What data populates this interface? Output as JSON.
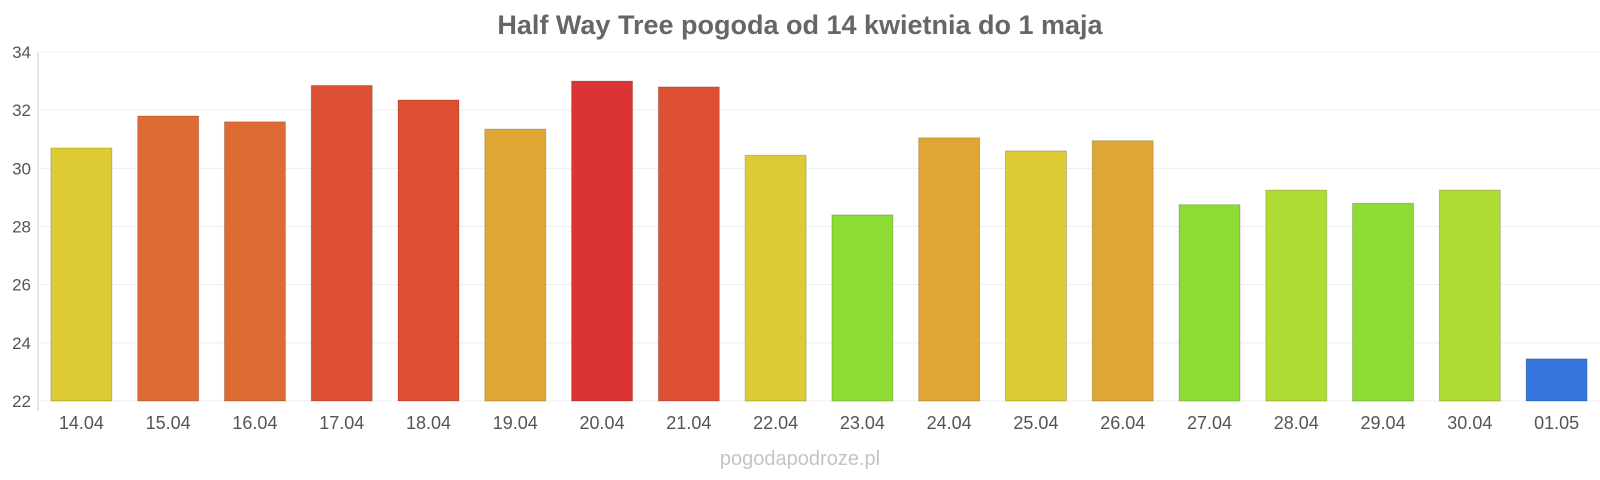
{
  "chart_data": {
    "type": "bar",
    "title": "Half Way Tree pogoda od 14 kwietnia do 1 maja",
    "categories": [
      "14.04",
      "15.04",
      "16.04",
      "17.04",
      "18.04",
      "19.04",
      "20.04",
      "21.04",
      "22.04",
      "23.04",
      "24.04",
      "25.04",
      "26.04",
      "27.04",
      "28.04",
      "29.04",
      "30.04",
      "01.05"
    ],
    "values": [
      30.7,
      31.8,
      31.6,
      32.85,
      32.35,
      31.35,
      33.0,
      32.8,
      30.45,
      28.4,
      31.05,
      30.6,
      30.95,
      28.75,
      29.25,
      28.8,
      29.25,
      23.45
    ],
    "colors": [
      "#dccb33",
      "#de6b33",
      "#de6b33",
      "#de5034",
      "#de5034",
      "#dfa633",
      "#dc3434",
      "#de5034",
      "#dccb33",
      "#8cdc34",
      "#dfa633",
      "#dccb33",
      "#dfa633",
      "#8cdc34",
      "#afdc34",
      "#8cdc34",
      "#afdc34",
      "#3476dc"
    ],
    "yticks": [
      22,
      24,
      26,
      28,
      30,
      32,
      34
    ],
    "ylim": [
      22,
      34
    ],
    "grid": true
  },
  "watermark": "pogodapodroze.pl"
}
